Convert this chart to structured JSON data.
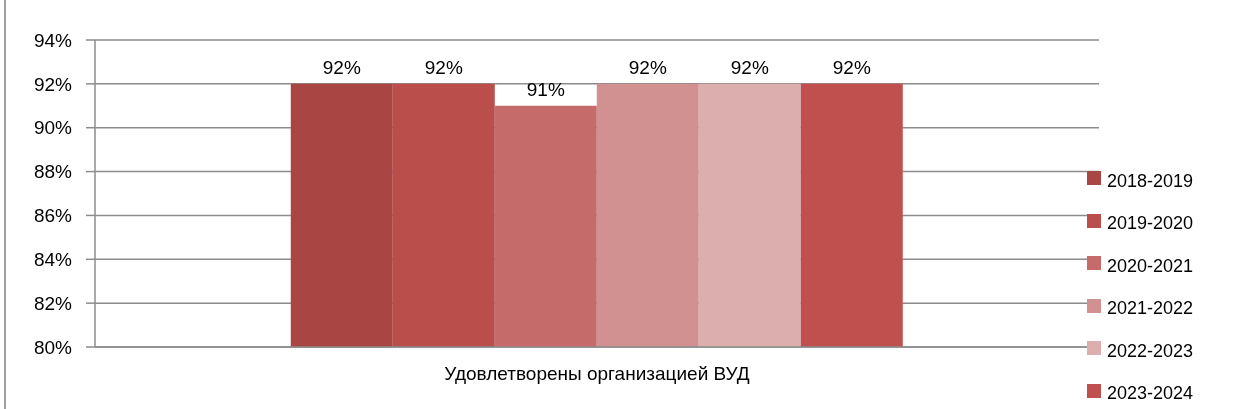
{
  "chart_data": {
    "type": "bar",
    "categories": [
      "Удовлетворены организацией ВУД"
    ],
    "series": [
      {
        "name": "2018-2019",
        "color": "#a94542",
        "values": [
          92
        ],
        "value_labels": [
          "92%"
        ]
      },
      {
        "name": "2019-2020",
        "color": "#b94e4b",
        "values": [
          92
        ],
        "value_labels": [
          "92%"
        ]
      },
      {
        "name": "2020-2021",
        "color": "#c56b69",
        "values": [
          91
        ],
        "value_labels": [
          "91%"
        ]
      },
      {
        "name": "2021-2022",
        "color": "#d19190",
        "values": [
          92
        ],
        "value_labels": [
          "92%"
        ]
      },
      {
        "name": "2022-2023",
        "color": "#dcaeae",
        "values": [
          92
        ],
        "value_labels": [
          "92%"
        ]
      },
      {
        "name": "2023-2024",
        "color": "#c0504d",
        "values": [
          92
        ],
        "value_labels": [
          "92%"
        ]
      }
    ],
    "ylim": [
      80,
      94
    ],
    "yticks": [
      {
        "value": 80,
        "label": "80%"
      },
      {
        "value": 82,
        "label": "82%"
      },
      {
        "value": 84,
        "label": "84%"
      },
      {
        "value": 86,
        "label": "86%"
      },
      {
        "value": 88,
        "label": "88%"
      },
      {
        "value": 90,
        "label": "90%"
      },
      {
        "value": 92,
        "label": "92%"
      },
      {
        "value": 94,
        "label": "94%"
      }
    ],
    "grid": "y",
    "legend": "right"
  }
}
